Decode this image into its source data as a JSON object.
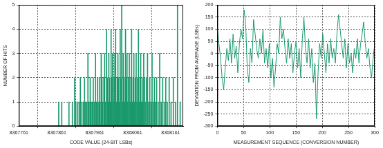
{
  "chart_data": [
    {
      "type": "bar",
      "xlabel": "CODE VALUE (24-BIT LSBs)",
      "ylabel": "NUMBER OF HITS",
      "x": [
        8367866,
        8367874,
        8367893,
        8367902,
        8367908,
        8367911,
        8367916,
        8367920,
        8367923,
        8367927,
        8367931,
        8367934,
        8367937,
        8367940,
        8367943,
        8367946,
        8367949,
        8367951,
        8367954,
        8367957,
        8367960,
        8367963,
        8367965,
        8367968,
        8367970,
        8367973,
        8367975,
        8367978,
        8367980,
        8367982,
        8367985,
        8367987,
        8367989,
        8367992,
        8367994,
        8367996,
        8367998,
        8368000,
        8368002,
        8368004,
        8368006,
        8368008,
        8368010,
        8368012,
        8368014,
        8368016,
        8368018,
        8368020,
        8368022,
        8368024,
        8368026,
        8368028,
        8368030,
        8368032,
        8368034,
        8368036,
        8368038,
        8368040,
        8368042,
        8368044,
        8368046,
        8368048,
        8368050,
        8368052,
        8368054,
        8368056,
        8368058,
        8368060,
        8368062,
        8368064,
        8368066,
        8368068,
        8368070,
        8368072,
        8368074,
        8368076,
        8368078,
        8368080,
        8368082,
        8368084,
        8368086,
        8368088,
        8368090,
        8368092,
        8368094,
        8368097,
        8368100,
        8368103,
        8368106,
        8368109,
        8368112,
        8368115,
        8368118,
        8368121,
        8368124,
        8368128,
        8368132,
        8368136,
        8368140,
        8368144,
        8368148,
        8368152,
        8368157,
        8368162,
        8368168,
        8368174,
        8368179,
        8368186
      ],
      "values": [
        1,
        1,
        1,
        1,
        2,
        1,
        1,
        1,
        2,
        1,
        1,
        2,
        1,
        1,
        3,
        1,
        2,
        1,
        1,
        2,
        1,
        3,
        1,
        2,
        1,
        2,
        1,
        3,
        2,
        1,
        2,
        3,
        1,
        4,
        2,
        1,
        3,
        2,
        1,
        4,
        2,
        3,
        1,
        2,
        3,
        4,
        1,
        2,
        3,
        2,
        1,
        4,
        2,
        5,
        1,
        3,
        2,
        1,
        4,
        2,
        3,
        1,
        2,
        3,
        1,
        2,
        4,
        1,
        2,
        3,
        1,
        2,
        3,
        1,
        2,
        4,
        1,
        2,
        3,
        1,
        2,
        1,
        3,
        2,
        1,
        2,
        3,
        1,
        2,
        1,
        3,
        1,
        2,
        1,
        2,
        1,
        3,
        1,
        2,
        1,
        2,
        1,
        2,
        1,
        2,
        1,
        5,
        1
      ],
      "color": "#1a9a6c",
      "xlim": [
        8367761,
        8368194
      ],
      "xticks": [
        8367761,
        8367861,
        8367961,
        8368061,
        8368161
      ],
      "ylim": [
        0,
        5
      ],
      "yticks": [
        0,
        1,
        2,
        3,
        4,
        5
      ],
      "grid": true
    },
    {
      "type": "line",
      "xlabel": "MEASUREMENT SEQUENCE (CONVERSION NUMBER)",
      "ylabel": "DEVIATION FROM AVERAGE (LSBs)",
      "x": [
        0,
        3,
        6,
        9,
        12,
        15,
        18,
        21,
        24,
        27,
        30,
        33,
        36,
        39,
        42,
        45,
        48,
        51,
        54,
        57,
        60,
        63,
        66,
        69,
        72,
        75,
        78,
        81,
        84,
        87,
        90,
        93,
        96,
        99,
        102,
        105,
        108,
        111,
        114,
        117,
        120,
        123,
        126,
        129,
        132,
        135,
        138,
        141,
        144,
        147,
        150,
        153,
        156,
        159,
        162,
        165,
        168,
        171,
        174,
        177,
        180,
        183,
        186,
        189,
        192,
        195,
        198,
        201,
        204,
        207,
        210,
        213,
        216,
        219,
        222,
        225,
        228,
        231,
        234,
        237,
        240,
        243,
        246,
        249,
        252,
        255,
        258,
        261,
        264,
        267,
        270,
        273,
        276,
        279,
        282,
        285,
        288,
        291,
        294,
        297,
        300
      ],
      "values": [
        100,
        40,
        -20,
        -100,
        -150,
        -60,
        20,
        -30,
        60,
        -40,
        80,
        -20,
        30,
        -80,
        40,
        100,
        60,
        180,
        120,
        -60,
        -120,
        20,
        -40,
        140,
        80,
        20,
        -20,
        60,
        0,
        100,
        -40,
        20,
        -60,
        40,
        -100,
        -20,
        -140,
        -60,
        40,
        0,
        150,
        60,
        100,
        20,
        -40,
        60,
        -20,
        40,
        -80,
        0,
        50,
        -60,
        20,
        -100,
        60,
        150,
        20,
        -40,
        60,
        -60,
        20,
        -120,
        -40,
        -270,
        -80,
        40,
        -20,
        80,
        0,
        -80,
        40,
        -40,
        60,
        -20,
        20,
        -40,
        80,
        160,
        100,
        40,
        -20,
        60,
        -60,
        40,
        -40,
        0,
        -80,
        20,
        -20,
        60,
        -40,
        40,
        80,
        130,
        40,
        -20,
        20,
        -60,
        -100,
        -20,
        40
      ],
      "color": "#1a9a6c",
      "xlim": [
        0,
        300
      ],
      "xticks": [
        0,
        50,
        100,
        150,
        200,
        250,
        300
      ],
      "ylim": [
        -300,
        200
      ],
      "yticks": [
        -300,
        -250,
        -200,
        -150,
        -100,
        -50,
        0,
        50,
        100,
        150,
        200
      ],
      "grid": true
    }
  ]
}
